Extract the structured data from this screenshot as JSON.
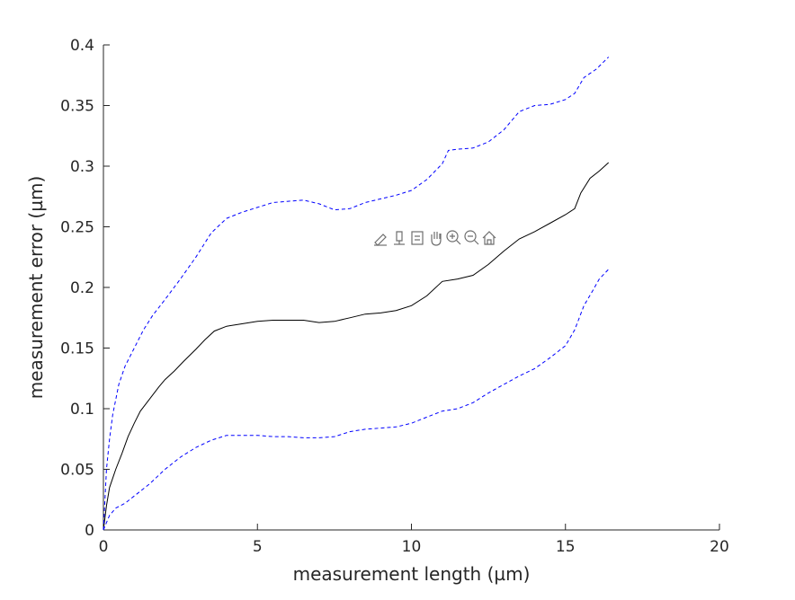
{
  "chart_data": {
    "type": "line",
    "title": "",
    "xlabel": "measurement length (µm)",
    "ylabel": "measurement error (µm)",
    "xlim": [
      0,
      20
    ],
    "ylim": [
      0,
      0.4
    ],
    "xticks": [
      0,
      5,
      10,
      15,
      20
    ],
    "xtick_labels": [
      "0",
      "5",
      "10",
      "15",
      "20"
    ],
    "yticks": [
      0,
      0.05,
      0.1,
      0.15,
      0.2,
      0.25,
      0.3,
      0.35,
      0.4
    ],
    "ytick_labels": [
      "0",
      "0.05",
      "0.1",
      "0.15",
      "0.2",
      "0.25",
      "0.3",
      "0.35",
      "0.4"
    ],
    "grid": false,
    "legend": "none",
    "series": [
      {
        "role": "mean",
        "color": "#000000",
        "style": "solid",
        "x": [
          0,
          0.1,
          0.2,
          0.4,
          0.6,
          0.8,
          1.0,
          1.2,
          1.5,
          1.8,
          2.0,
          2.3,
          2.6,
          3.0,
          3.3,
          3.6,
          4.0,
          4.5,
          5.0,
          5.5,
          6.0,
          6.5,
          7.0,
          7.5,
          8.0,
          8.5,
          9.0,
          9.5,
          10.0,
          10.5,
          11.0,
          11.5,
          12.0,
          12.5,
          13.0,
          13.5,
          14.0,
          14.5,
          15.0,
          15.3,
          15.5,
          15.8,
          16.1,
          16.4
        ],
        "y": [
          0.0,
          0.02,
          0.035,
          0.05,
          0.063,
          0.077,
          0.088,
          0.098,
          0.108,
          0.118,
          0.124,
          0.131,
          0.139,
          0.149,
          0.157,
          0.164,
          0.168,
          0.17,
          0.172,
          0.173,
          0.173,
          0.173,
          0.171,
          0.172,
          0.175,
          0.178,
          0.179,
          0.181,
          0.185,
          0.193,
          0.205,
          0.207,
          0.21,
          0.219,
          0.23,
          0.24,
          0.246,
          0.253,
          0.26,
          0.265,
          0.278,
          0.29,
          0.296,
          0.303
        ]
      },
      {
        "role": "upper bound",
        "color": "#0000ff",
        "style": "dashed",
        "x": [
          0,
          0.1,
          0.2,
          0.3,
          0.5,
          0.7,
          1.0,
          1.3,
          1.6,
          2.0,
          2.5,
          3.0,
          3.5,
          4.0,
          4.5,
          5.0,
          5.5,
          6.0,
          6.5,
          7.0,
          7.5,
          8.0,
          8.5,
          9.0,
          9.5,
          10.0,
          10.5,
          11.0,
          11.2,
          11.5,
          12.0,
          12.5,
          13.0,
          13.5,
          14.0,
          14.5,
          15.0,
          15.3,
          15.6,
          16.0,
          16.4
        ],
        "y": [
          0.0,
          0.05,
          0.075,
          0.095,
          0.12,
          0.135,
          0.15,
          0.165,
          0.177,
          0.19,
          0.207,
          0.225,
          0.245,
          0.257,
          0.262,
          0.266,
          0.27,
          0.271,
          0.272,
          0.269,
          0.264,
          0.265,
          0.27,
          0.273,
          0.276,
          0.28,
          0.289,
          0.302,
          0.313,
          0.314,
          0.315,
          0.32,
          0.33,
          0.345,
          0.35,
          0.351,
          0.355,
          0.36,
          0.373,
          0.38,
          0.39
        ]
      },
      {
        "role": "lower bound",
        "color": "#0000ff",
        "style": "dashed",
        "x": [
          0,
          0.2,
          0.4,
          0.7,
          1.0,
          1.5,
          2.0,
          2.5,
          3.0,
          3.5,
          4.0,
          4.5,
          5.0,
          5.5,
          6.0,
          6.5,
          7.0,
          7.5,
          8.0,
          8.5,
          9.0,
          9.5,
          10.0,
          10.5,
          11.0,
          11.5,
          12.0,
          12.5,
          13.0,
          13.5,
          14.0,
          14.5,
          15.0,
          15.3,
          15.6,
          15.9,
          16.1,
          16.4
        ],
        "y": [
          0.0,
          0.012,
          0.018,
          0.022,
          0.028,
          0.038,
          0.05,
          0.06,
          0.068,
          0.074,
          0.078,
          0.078,
          0.078,
          0.077,
          0.077,
          0.076,
          0.076,
          0.077,
          0.081,
          0.083,
          0.084,
          0.085,
          0.088,
          0.093,
          0.098,
          0.1,
          0.105,
          0.113,
          0.12,
          0.127,
          0.133,
          0.142,
          0.152,
          0.165,
          0.185,
          0.198,
          0.207,
          0.215
        ]
      }
    ]
  },
  "toolbar": {
    "icons": [
      "brush-icon",
      "data-tips-icon",
      "legend-icon",
      "pan-hand-icon",
      "zoom-in-icon",
      "zoom-out-icon",
      "home-icon"
    ]
  }
}
